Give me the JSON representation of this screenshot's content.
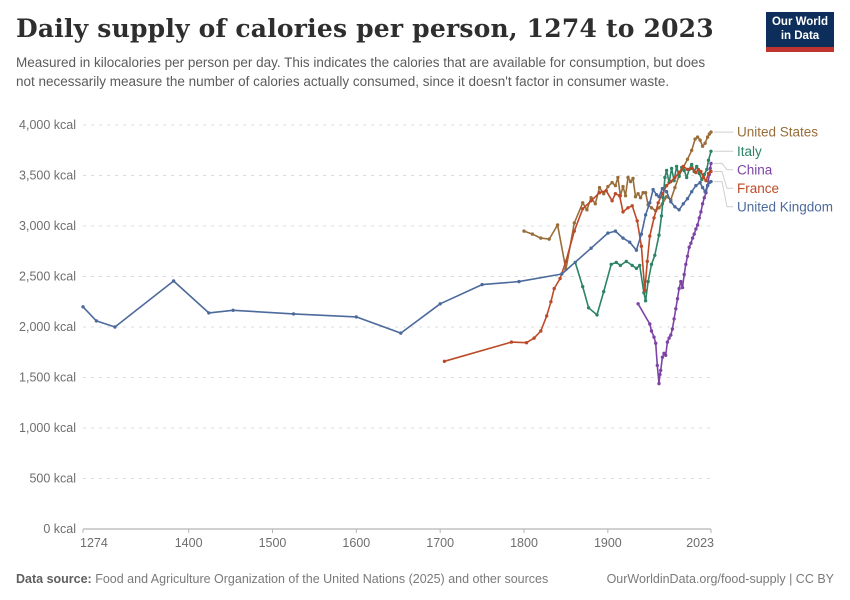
{
  "header": {
    "title": "Daily supply of calories per person, 1274 to 2023",
    "subtitle": "Measured in kilocalories per person per day. This indicates the calories that are available for consumption, but does not necessarily measure the number of calories actually consumed, since it doesn't factor in consumer waste.",
    "logo": {
      "line1": "Our World",
      "line2": "in Data",
      "bg_color": "#0d2e5b",
      "stripe_color": "#c0342f"
    }
  },
  "footer": {
    "source_label": "Data source:",
    "source_text": " Food and Agriculture Organization of the United Nations (2025) and other sources",
    "credit": "OurWorldinData.org/food-supply | CC BY"
  },
  "chart_data": {
    "type": "line",
    "title": "Daily supply of calories per person, 1274 to 2023",
    "unit": "kcal",
    "grid": "dashed",
    "legend_position": "right",
    "x_axis": {
      "min": 1274,
      "max": 2023,
      "ticks": [
        1274,
        1400,
        1500,
        1600,
        1700,
        1800,
        1900,
        2023
      ]
    },
    "y_axis": {
      "min": 0,
      "max": 4000,
      "ticks": [
        {
          "value": 0,
          "label": "0 kcal"
        },
        {
          "value": 500,
          "label": "500 kcal"
        },
        {
          "value": 1000,
          "label": "1,000 kcal"
        },
        {
          "value": 1500,
          "label": "1,500 kcal"
        },
        {
          "value": 2000,
          "label": "2,000 kcal"
        },
        {
          "value": 2500,
          "label": "2,500 kcal"
        },
        {
          "value": 3000,
          "label": "3,000 kcal"
        },
        {
          "value": 3500,
          "label": "3,500 kcal"
        },
        {
          "value": 4000,
          "label": "4,000 kcal"
        }
      ]
    },
    "series": [
      {
        "name": "United States",
        "color": "#996D39",
        "points": [
          [
            1800,
            2950
          ],
          [
            1810,
            2920
          ],
          [
            1820,
            2880
          ],
          [
            1830,
            2870
          ],
          [
            1840,
            3010
          ],
          [
            1850,
            2570
          ],
          [
            1860,
            3030
          ],
          [
            1870,
            3230
          ],
          [
            1875,
            3160
          ],
          [
            1880,
            3280
          ],
          [
            1885,
            3220
          ],
          [
            1890,
            3380
          ],
          [
            1895,
            3320
          ],
          [
            1900,
            3390
          ],
          [
            1905,
            3430
          ],
          [
            1909,
            3400
          ],
          [
            1912,
            3480
          ],
          [
            1915,
            3300
          ],
          [
            1918,
            3390
          ],
          [
            1921,
            3300
          ],
          [
            1924,
            3480
          ],
          [
            1927,
            3440
          ],
          [
            1930,
            3470
          ],
          [
            1933,
            3290
          ],
          [
            1936,
            3320
          ],
          [
            1939,
            3280
          ],
          [
            1942,
            3330
          ],
          [
            1945,
            3330
          ],
          [
            1948,
            3210
          ],
          [
            1952,
            3180
          ],
          [
            1957,
            3150
          ],
          [
            1961,
            3180
          ],
          [
            1965,
            3220
          ],
          [
            1970,
            3290
          ],
          [
            1975,
            3260
          ],
          [
            1980,
            3380
          ],
          [
            1985,
            3500
          ],
          [
            1990,
            3580
          ],
          [
            1995,
            3660
          ],
          [
            2000,
            3750
          ],
          [
            2004,
            3860
          ],
          [
            2007,
            3880
          ],
          [
            2010,
            3850
          ],
          [
            2013,
            3790
          ],
          [
            2016,
            3820
          ],
          [
            2019,
            3880
          ],
          [
            2021,
            3910
          ],
          [
            2023,
            3930
          ]
        ]
      },
      {
        "name": "Italy",
        "color": "#2C8465",
        "points": [
          [
            1861,
            2640
          ],
          [
            1870,
            2400
          ],
          [
            1877,
            2190
          ],
          [
            1887,
            2120
          ],
          [
            1895,
            2350
          ],
          [
            1904,
            2620
          ],
          [
            1910,
            2640
          ],
          [
            1915,
            2610
          ],
          [
            1922,
            2650
          ],
          [
            1929,
            2610
          ],
          [
            1934,
            2580
          ],
          [
            1938,
            2610
          ],
          [
            1943,
            2340
          ],
          [
            1945,
            2260
          ],
          [
            1948,
            2450
          ],
          [
            1952,
            2620
          ],
          [
            1956,
            2710
          ],
          [
            1961,
            2910
          ],
          [
            1964,
            3100
          ],
          [
            1966,
            3280
          ],
          [
            1968,
            3480
          ],
          [
            1970,
            3550
          ],
          [
            1973,
            3430
          ],
          [
            1976,
            3570
          ],
          [
            1979,
            3450
          ],
          [
            1982,
            3590
          ],
          [
            1985,
            3490
          ],
          [
            1988,
            3580
          ],
          [
            1991,
            3550
          ],
          [
            1994,
            3480
          ],
          [
            1997,
            3560
          ],
          [
            2000,
            3610
          ],
          [
            2003,
            3540
          ],
          [
            2006,
            3590
          ],
          [
            2009,
            3520
          ],
          [
            2012,
            3460
          ],
          [
            2015,
            3510
          ],
          [
            2018,
            3560
          ],
          [
            2020,
            3650
          ],
          [
            2023,
            3740
          ]
        ]
      },
      {
        "name": "China",
        "color": "#7D44A5",
        "points": [
          [
            1936,
            2230
          ],
          [
            1950,
            2030
          ],
          [
            1952,
            1960
          ],
          [
            1955,
            1900
          ],
          [
            1957,
            1840
          ],
          [
            1959,
            1620
          ],
          [
            1961,
            1440
          ],
          [
            1962,
            1530
          ],
          [
            1963,
            1570
          ],
          [
            1965,
            1700
          ],
          [
            1967,
            1740
          ],
          [
            1969,
            1720
          ],
          [
            1971,
            1850
          ],
          [
            1973,
            1890
          ],
          [
            1975,
            1920
          ],
          [
            1977,
            1980
          ],
          [
            1979,
            2080
          ],
          [
            1981,
            2180
          ],
          [
            1983,
            2280
          ],
          [
            1985,
            2380
          ],
          [
            1987,
            2450
          ],
          [
            1989,
            2390
          ],
          [
            1991,
            2520
          ],
          [
            1993,
            2620
          ],
          [
            1995,
            2700
          ],
          [
            1997,
            2790
          ],
          [
            1999,
            2830
          ],
          [
            2001,
            2880
          ],
          [
            2003,
            2920
          ],
          [
            2005,
            2970
          ],
          [
            2007,
            3010
          ],
          [
            2009,
            3080
          ],
          [
            2011,
            3140
          ],
          [
            2013,
            3220
          ],
          [
            2015,
            3280
          ],
          [
            2017,
            3330
          ],
          [
            2019,
            3400
          ],
          [
            2021,
            3510
          ],
          [
            2022,
            3570
          ],
          [
            2023,
            3620
          ]
        ]
      },
      {
        "name": "France",
        "color": "#BC4A28",
        "points": [
          [
            1705,
            1660
          ],
          [
            1785,
            1850
          ],
          [
            1803,
            1845
          ],
          [
            1812,
            1890
          ],
          [
            1820,
            1960
          ],
          [
            1827,
            2110
          ],
          [
            1832,
            2250
          ],
          [
            1836,
            2380
          ],
          [
            1843,
            2480
          ],
          [
            1850,
            2650
          ],
          [
            1860,
            2950
          ],
          [
            1870,
            3170
          ],
          [
            1880,
            3250
          ],
          [
            1890,
            3330
          ],
          [
            1898,
            3350
          ],
          [
            1905,
            3250
          ],
          [
            1909,
            3320
          ],
          [
            1914,
            3300
          ],
          [
            1918,
            3140
          ],
          [
            1924,
            3180
          ],
          [
            1929,
            3200
          ],
          [
            1935,
            3050
          ],
          [
            1940,
            2800
          ],
          [
            1944,
            2360
          ],
          [
            1947,
            2650
          ],
          [
            1950,
            2900
          ],
          [
            1955,
            3080
          ],
          [
            1960,
            3230
          ],
          [
            1965,
            3320
          ],
          [
            1970,
            3400
          ],
          [
            1975,
            3440
          ],
          [
            1980,
            3480
          ],
          [
            1985,
            3530
          ],
          [
            1990,
            3590
          ],
          [
            1995,
            3560
          ],
          [
            2000,
            3570
          ],
          [
            2005,
            3530
          ],
          [
            2008,
            3560
          ],
          [
            2011,
            3540
          ],
          [
            2014,
            3480
          ],
          [
            2017,
            3450
          ],
          [
            2020,
            3520
          ],
          [
            2023,
            3540
          ]
        ]
      },
      {
        "name": "United Kingdom",
        "color": "#4C6A9C",
        "points": [
          [
            1274,
            2200
          ],
          [
            1290,
            2060
          ],
          [
            1312,
            2000
          ],
          [
            1382,
            2455
          ],
          [
            1424,
            2140
          ],
          [
            1453,
            2165
          ],
          [
            1525,
            2130
          ],
          [
            1600,
            2100
          ],
          [
            1653,
            1940
          ],
          [
            1700,
            2230
          ],
          [
            1750,
            2420
          ],
          [
            1794,
            2450
          ],
          [
            1845,
            2525
          ],
          [
            1880,
            2780
          ],
          [
            1900,
            2930
          ],
          [
            1909,
            2950
          ],
          [
            1918,
            2880
          ],
          [
            1926,
            2840
          ],
          [
            1934,
            2760
          ],
          [
            1940,
            2920
          ],
          [
            1945,
            3110
          ],
          [
            1950,
            3230
          ],
          [
            1954,
            3360
          ],
          [
            1958,
            3310
          ],
          [
            1961,
            3290
          ],
          [
            1965,
            3370
          ],
          [
            1970,
            3340
          ],
          [
            1975,
            3240
          ],
          [
            1980,
            3190
          ],
          [
            1985,
            3160
          ],
          [
            1990,
            3220
          ],
          [
            1995,
            3270
          ],
          [
            2000,
            3340
          ],
          [
            2005,
            3400
          ],
          [
            2010,
            3430
          ],
          [
            2013,
            3380
          ],
          [
            2016,
            3340
          ],
          [
            2019,
            3400
          ],
          [
            2021,
            3430
          ],
          [
            2023,
            3440
          ]
        ]
      }
    ]
  }
}
